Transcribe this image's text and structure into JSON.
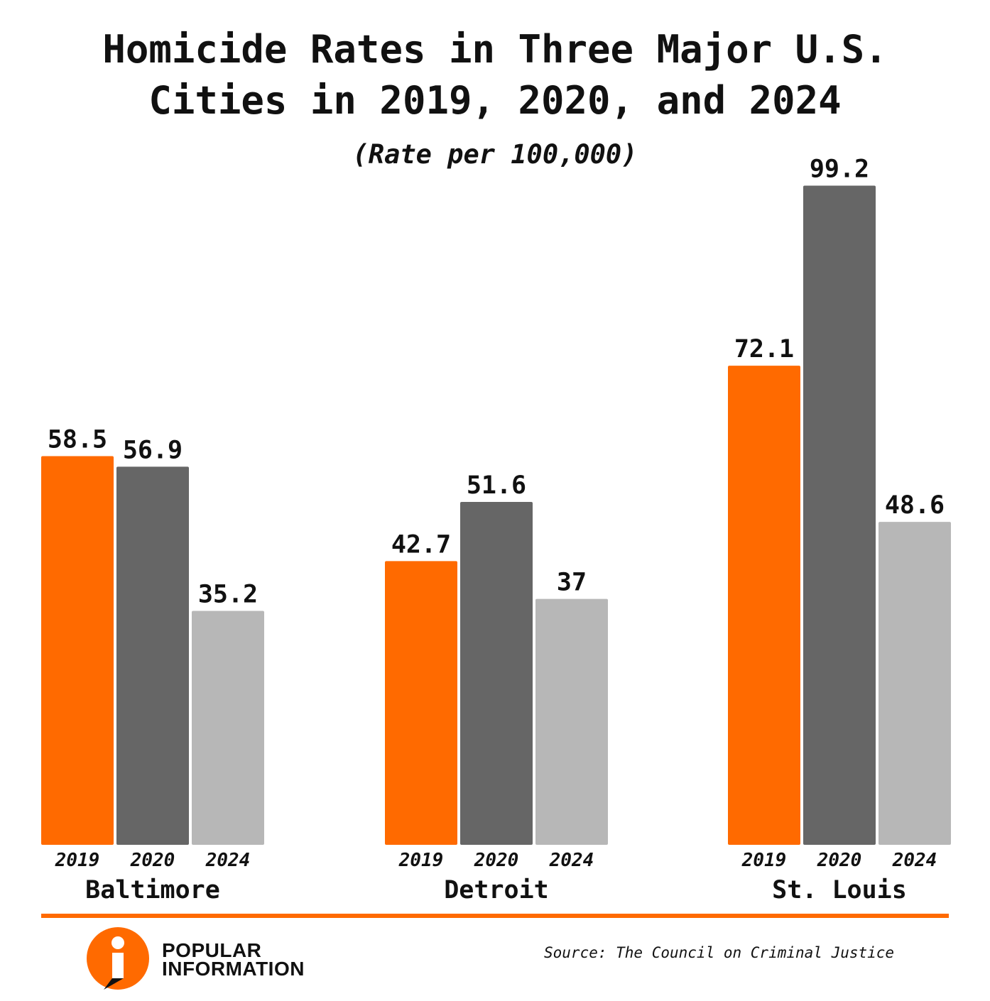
{
  "header": {
    "title_line1": "Homicide Rates in Three Major U.S.",
    "title_line2": "Cities in 2019, 2020, and 2024",
    "subtitle": "(Rate per 100,000)"
  },
  "chart_data": {
    "type": "bar",
    "title": "Homicide Rates in Three Major U.S. Cities in 2019, 2020, and 2024",
    "subtitle": "(Rate per 100,000)",
    "categories": [
      "Baltimore",
      "Detroit",
      "St. Louis"
    ],
    "series": [
      {
        "name": "2019",
        "values": [
          58.5,
          42.7,
          72.1
        ],
        "color": "#ff6a00"
      },
      {
        "name": "2020",
        "values": [
          56.9,
          51.6,
          99.2
        ],
        "color": "#666666"
      },
      {
        "name": "2024",
        "values": [
          35.2,
          37,
          48.6
        ],
        "color": "#b7b7b7"
      }
    ],
    "value_labels": [
      [
        "58.5",
        "56.9",
        "35.2"
      ],
      [
        "42.7",
        "51.6",
        "37"
      ],
      [
        "72.1",
        "99.2",
        "48.6"
      ]
    ],
    "ylim": [
      0,
      100
    ],
    "grid": false,
    "legend": "none"
  },
  "footer": {
    "logo_line1": "POPULAR",
    "logo_line2": "INFORMATION",
    "source": "Source: The Council on Criminal Justice"
  },
  "colors": {
    "accent": "#ff6a00",
    "dark_gray": "#666666",
    "light_gray": "#b7b7b7"
  }
}
